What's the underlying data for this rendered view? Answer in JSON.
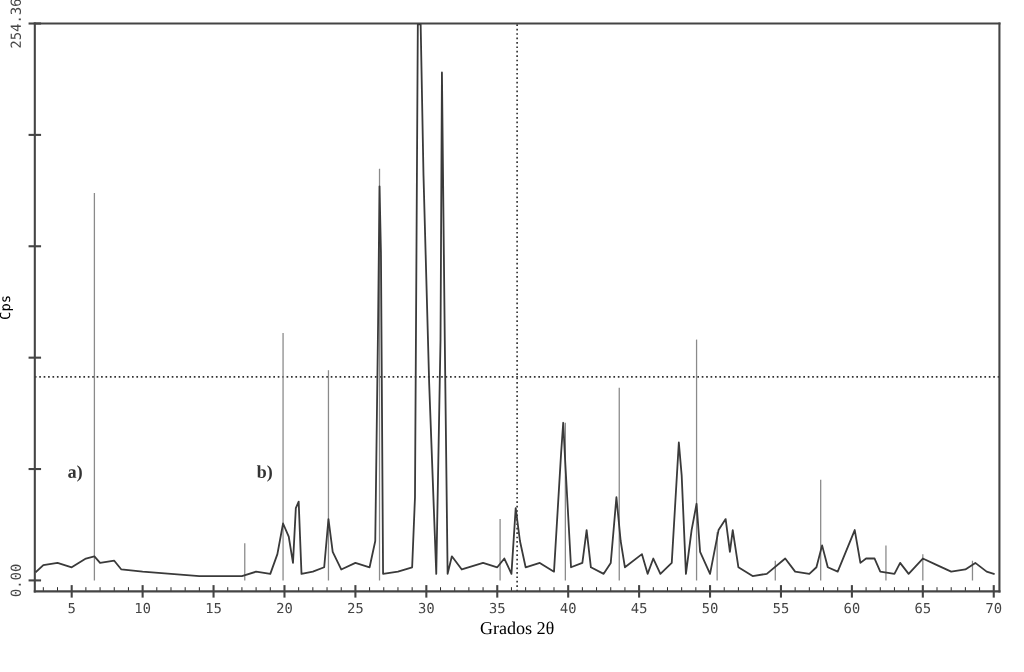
{
  "chart_data": {
    "type": "line",
    "xlabel": "Grados 2θ",
    "ylabel": "Cps",
    "xlim": [
      2.4,
      70.4
    ],
    "xticks": [
      5,
      10,
      15,
      20,
      25,
      30,
      35,
      40,
      45,
      50,
      55,
      60,
      65,
      70
    ],
    "ylim": [
      -5,
      254.36
    ],
    "yticks": [
      {
        "value": 0,
        "label": "0.00"
      },
      {
        "value": 50.87,
        "label": null
      },
      {
        "value": 101.74,
        "label": null
      },
      {
        "value": 152.62,
        "label": null
      },
      {
        "value": 203.49,
        "label": null
      },
      {
        "value": 254.36,
        "label": "254.36"
      }
    ],
    "grid": false,
    "legend": false,
    "ref_lines": [
      {
        "axis": "x",
        "value": 36.4,
        "label": null,
        "line_style": "dotted",
        "color": "#333333"
      },
      {
        "axis": "y",
        "value": 93,
        "label": null,
        "line_style": "dotted",
        "color": "#333333"
      }
    ],
    "annotations": [
      "a)",
      "b)"
    ],
    "series": [
      {
        "type": "bar",
        "color": "#8a8a8a",
        "x": [
          6.6,
          17.2,
          19.9,
          23.1,
          26.7,
          29.4,
          35.2,
          39.8,
          43.6,
          49.05,
          50.5,
          54.6,
          57.8,
          62.4,
          65.0,
          68.5
        ],
        "values": [
          177,
          17,
          113,
          96,
          188,
          null,
          28,
          72,
          88,
          110,
          22,
          9,
          46,
          16,
          12,
          9
        ]
      },
      {
        "color": "#3a3a3a",
        "x": [
          2.5,
          3,
          4,
          5,
          6,
          6.6,
          7,
          8,
          8.5,
          10,
          12,
          14,
          16,
          17,
          18,
          19,
          19.5,
          19.9,
          20.3,
          20.6,
          20.8,
          21,
          21.2,
          22,
          22.8,
          23.1,
          23.4,
          24,
          25,
          26,
          26.4,
          26.6,
          26.7,
          26.8,
          26.95,
          28,
          29,
          29.2,
          29.4,
          29.6,
          29.8,
          30.2,
          30.7,
          31,
          31.1,
          31.3,
          31.5,
          31.8,
          32.5,
          34,
          35,
          35.5,
          36,
          36.3,
          36.6,
          37,
          38,
          39,
          39.5,
          39.65,
          39.8,
          40.2,
          41,
          41.3,
          41.6,
          42.5,
          43,
          43.4,
          43.7,
          44,
          45.2,
          45.6,
          46,
          46.5,
          47.3,
          47.8,
          48,
          48.3,
          48.7,
          49.05,
          49.3,
          50,
          50.6,
          51.1,
          51.4,
          51.6,
          52,
          53,
          54,
          55.3,
          56,
          57,
          57.5,
          57.9,
          58.3,
          59,
          60.2,
          60.6,
          61,
          61.6,
          62,
          63,
          63.4,
          64,
          65,
          66,
          67,
          68,
          68.7,
          69.5,
          70
        ],
        "values": [
          4,
          7,
          8,
          6,
          10,
          11,
          8,
          9,
          5,
          4,
          3,
          2,
          2,
          2,
          4,
          3,
          12,
          26,
          20,
          8,
          33,
          36,
          3,
          4,
          6,
          28,
          13,
          5,
          8,
          6,
          18,
          118,
          180,
          150,
          3,
          4,
          6,
          38,
          254,
          254,
          185,
          90,
          3,
          110,
          232,
          110,
          3,
          11,
          5,
          8,
          6,
          10,
          3,
          33,
          18,
          6,
          8,
          4,
          58,
          72,
          53,
          6,
          8,
          23,
          6,
          3,
          8,
          38,
          18,
          6,
          12,
          3,
          10,
          3,
          8,
          63,
          48,
          3,
          23,
          35,
          13,
          3,
          23,
          28,
          13,
          23,
          6,
          2,
          3,
          10,
          4,
          3,
          6,
          16,
          6,
          4,
          23,
          8,
          10,
          10,
          4,
          3,
          8,
          3,
          10,
          7,
          4,
          5,
          8,
          4,
          3
        ]
      }
    ]
  }
}
